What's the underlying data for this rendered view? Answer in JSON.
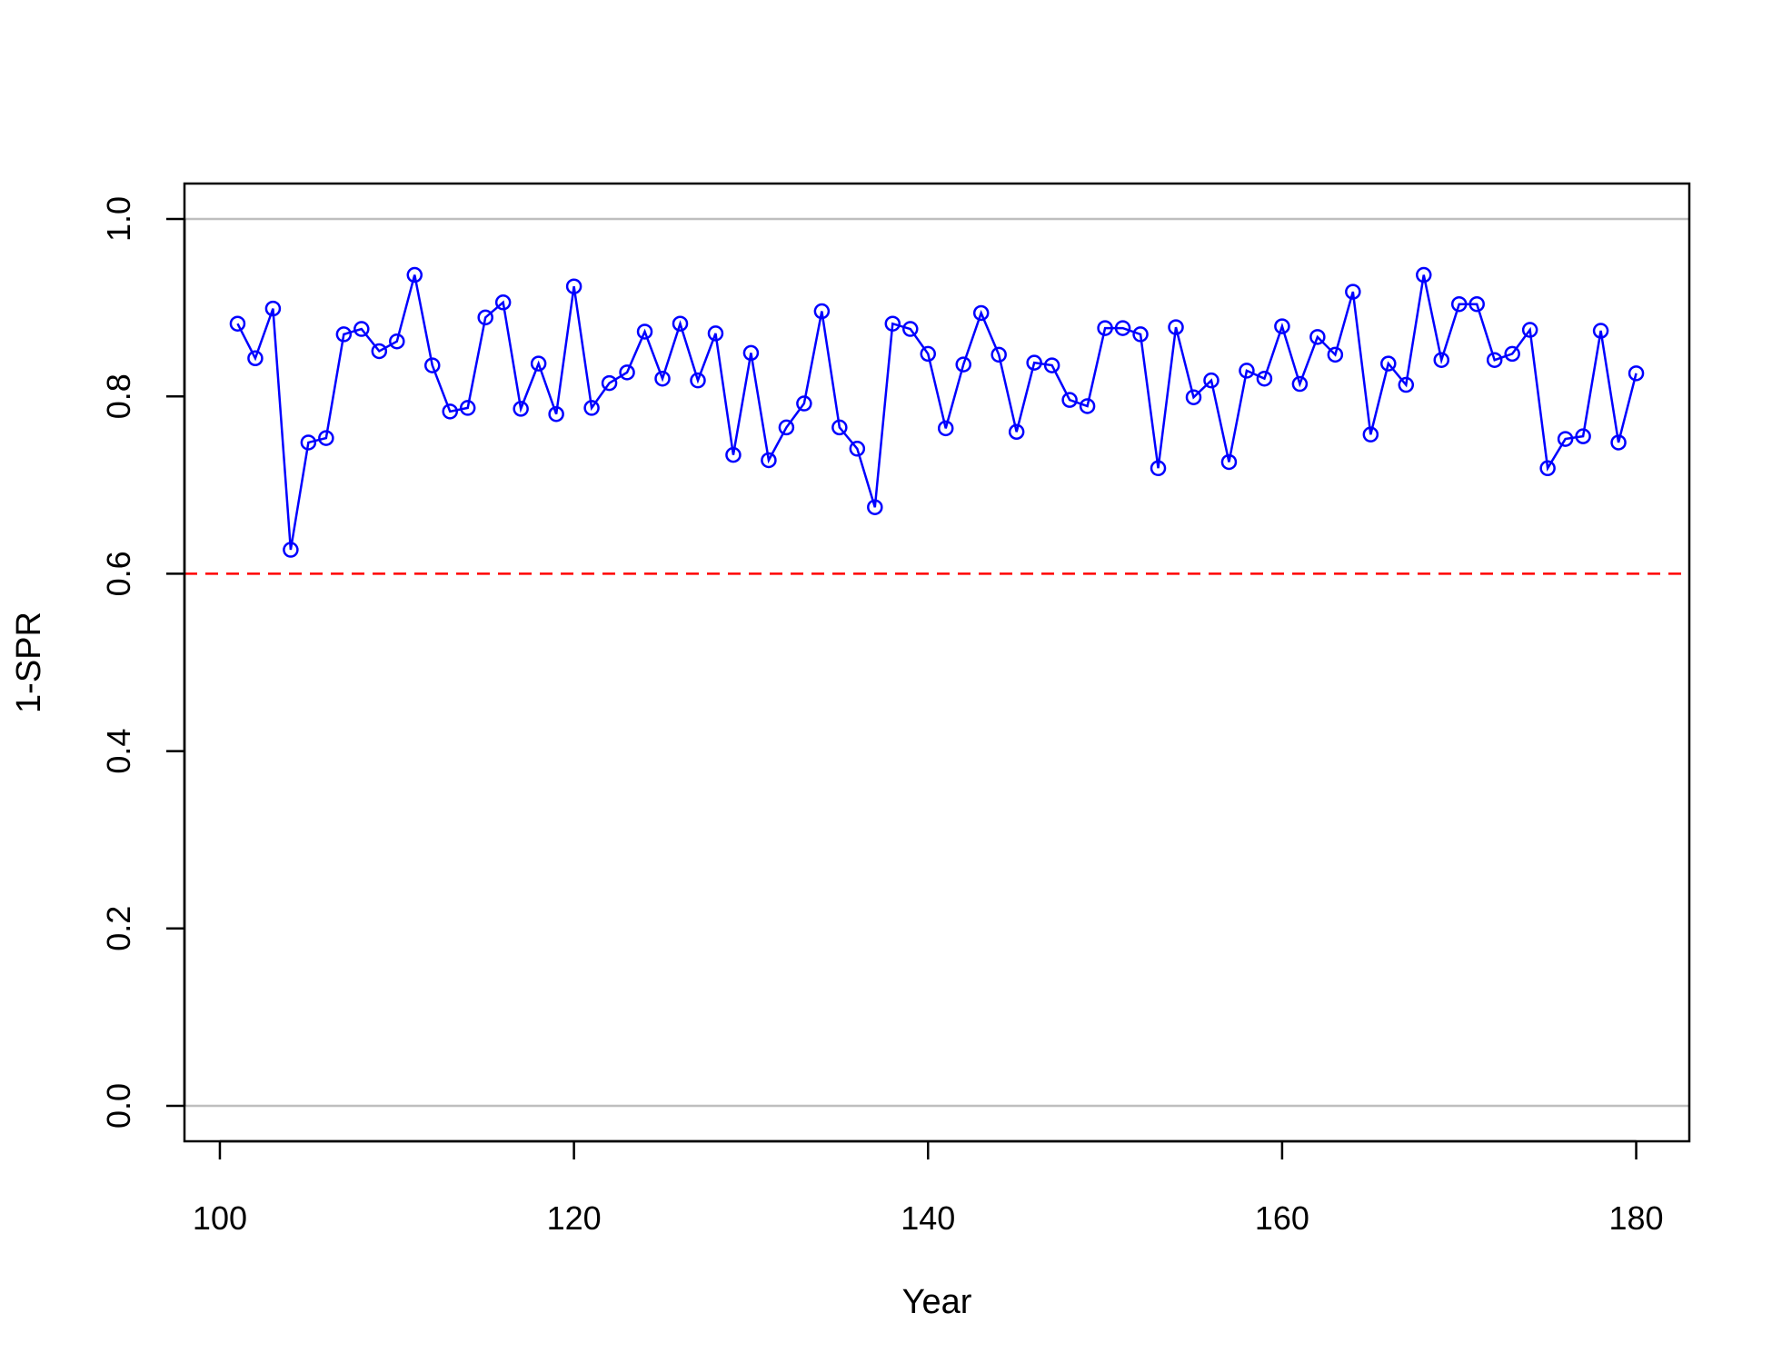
{
  "chart_data": {
    "type": "line",
    "title": "",
    "xlabel": "Year",
    "ylabel": "1-SPR",
    "xlim": [
      98,
      183
    ],
    "ylim": [
      -0.04,
      1.04
    ],
    "x_ticks": [
      100,
      120,
      140,
      160,
      180
    ],
    "x_tick_labels": [
      "100",
      "120",
      "140",
      "160",
      "180"
    ],
    "y_ticks": [
      0.0,
      0.2,
      0.4,
      0.6,
      0.8,
      1.0
    ],
    "y_tick_labels": [
      "0.0",
      "0.2",
      "0.4",
      "0.6",
      "0.8",
      "1.0"
    ],
    "grid": false,
    "reference_lines": [
      {
        "y": 1.0,
        "color": "#bebebe",
        "style": "solid"
      },
      {
        "y": 0.0,
        "color": "#bebebe",
        "style": "solid"
      },
      {
        "y": 0.6,
        "color": "#ff0000",
        "style": "dashed"
      }
    ],
    "series_color": "#0000ff",
    "x": [
      101,
      102,
      103,
      104,
      105,
      106,
      107,
      108,
      109,
      110,
      111,
      112,
      113,
      114,
      115,
      116,
      117,
      118,
      119,
      120,
      121,
      122,
      123,
      124,
      125,
      126,
      127,
      128,
      129,
      130,
      131,
      132,
      133,
      134,
      135,
      136,
      137,
      138,
      139,
      140,
      141,
      142,
      143,
      144,
      145,
      146,
      147,
      148,
      149,
      150,
      151,
      152,
      153,
      154,
      155,
      156,
      157,
      158,
      159,
      160,
      161,
      162,
      163,
      164,
      165,
      166,
      167,
      168,
      169,
      170,
      171,
      172,
      173,
      174,
      175,
      176,
      177,
      178,
      179,
      180
    ],
    "y": [
      0.882,
      0.843,
      0.899,
      0.627,
      0.748,
      0.753,
      0.87,
      0.876,
      0.851,
      0.862,
      0.937,
      0.835,
      0.783,
      0.787,
      0.889,
      0.906,
      0.786,
      0.837,
      0.78,
      0.924,
      0.787,
      0.815,
      0.827,
      0.873,
      0.82,
      0.882,
      0.818,
      0.871,
      0.734,
      0.849,
      0.728,
      0.765,
      0.792,
      0.896,
      0.765,
      0.741,
      0.675,
      0.882,
      0.876,
      0.848,
      0.764,
      0.836,
      0.894,
      0.847,
      0.76,
      0.838,
      0.835,
      0.796,
      0.789,
      0.877,
      0.877,
      0.87,
      0.719,
      0.878,
      0.799,
      0.818,
      0.726,
      0.829,
      0.82,
      0.879,
      0.814,
      0.867,
      0.847,
      0.918,
      0.757,
      0.837,
      0.813,
      0.937,
      0.841,
      0.904,
      0.904,
      0.841,
      0.848,
      0.875,
      0.719,
      0.752,
      0.755,
      0.874,
      0.748,
      0.826
    ]
  }
}
